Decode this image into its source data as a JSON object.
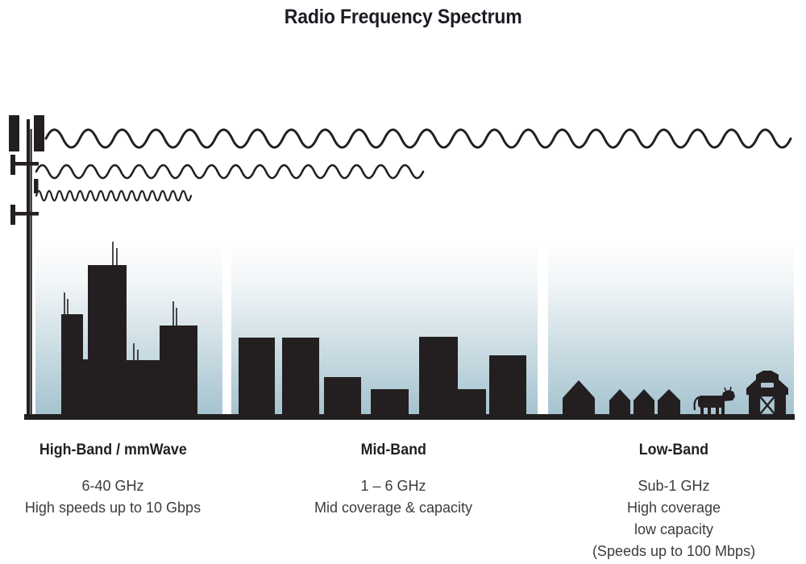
{
  "title": "Radio Frequency Spectrum",
  "colors": {
    "ink": "#231f20",
    "sky_top": "#ffffff",
    "sky_bottom": "#a5c3cf",
    "body_text": "#3c3c3c"
  },
  "waves": [
    {
      "name": "low-band-wave",
      "midline": 172,
      "start": 57,
      "end": 988,
      "wavelength": 42,
      "amplitude": 22,
      "stroke": 3
    },
    {
      "name": "mid-band-wave",
      "midline": 213,
      "start": 45,
      "end": 532,
      "wavelength": 30,
      "amplitude": 16,
      "stroke": 2.6
    },
    {
      "name": "high-band-wave",
      "midline": 243,
      "start": 45,
      "end": 238,
      "wavelength": 12.8,
      "amplitude": 12,
      "stroke": 2.2
    }
  ],
  "sections": [
    {
      "id": "high-band",
      "title": "High-Band / mmWave",
      "lines": [
        "6-40 GHz",
        "High speeds up to 10 Gbps"
      ]
    },
    {
      "id": "mid-band",
      "title": "Mid-Band",
      "lines": [
        "1 – 6 GHz",
        "Mid coverage & capacity"
      ]
    },
    {
      "id": "low-band",
      "title": "Low-Band",
      "lines": [
        "Sub-1 GHz",
        "High coverage",
        "low capacity",
        "(Speeds up to 100 Mbps)"
      ]
    }
  ]
}
